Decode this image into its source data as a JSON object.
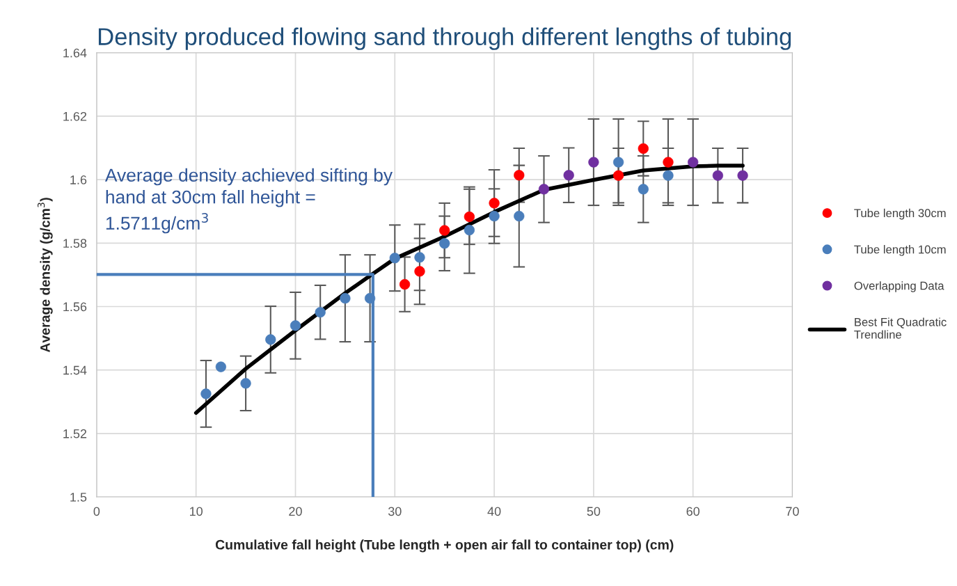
{
  "chart_data": {
    "type": "scatter",
    "title": "Density produced flowing sand through different lengths of tubing",
    "xlabel": "Cumulative fall height (Tube length + open air fall to container top) (cm)",
    "ylabel": "Average density (g/cm$^{3}$)",
    "xlim": [
      0,
      70
    ],
    "xticks": [
      0,
      10,
      20,
      30,
      40,
      50,
      60,
      70
    ],
    "ylim": [
      1.5,
      1.64
    ],
    "yticks": [
      1.5,
      1.52,
      1.54,
      1.56,
      1.58,
      1.6,
      1.62,
      1.64
    ],
    "grid": true,
    "legend": "right",
    "marker": "circle",
    "annotations": [
      "Average density achieved sifting by hand at 30cm fall height = 1.5711g/cm$^{3}$"
    ],
    "series": [
      {
        "name": "Tube length 30cm",
        "color": "#ff0000",
        "x": [
          31,
          32.5,
          35,
          37.5,
          40,
          42.5,
          52.5,
          55,
          57.5
        ],
        "values": [
          1.567,
          1.5711,
          1.584,
          1.5883,
          1.5926,
          1.6014,
          1.6013,
          1.6098,
          1.6055
        ],
        "errors": [
          0.0086,
          0.0104,
          0.0086,
          0.0087,
          0.0105,
          0.0085,
          0.0086,
          0.0086,
          0.0136
        ]
      },
      {
        "name": "Tube length 10cm",
        "color": "#4a7ebb",
        "x": [
          11,
          12.5,
          15,
          17.5,
          20,
          22.5,
          25,
          27.5,
          30,
          32.5,
          35,
          37.5,
          40,
          42.5,
          52.5,
          55,
          57.5
        ],
        "values": [
          1.5325,
          1.541,
          1.5358,
          1.5496,
          1.554,
          1.5582,
          1.5626,
          1.5626,
          1.5753,
          1.5755,
          1.5799,
          1.5841,
          1.5885,
          1.5885,
          1.6055,
          1.597,
          1.6013
        ],
        "errors": [
          0.0105,
          null,
          0.0086,
          0.0105,
          0.0105,
          0.0085,
          0.0137,
          0.0137,
          0.0104,
          0.0104,
          0.0086,
          0.0136,
          0.0086,
          0.016,
          0.0136,
          0.0105,
          0.0086
        ]
      },
      {
        "name": "Overlapping Data",
        "color": "#7030a0",
        "x": [
          45,
          47.5,
          50,
          60,
          62.5,
          65
        ],
        "values": [
          1.597,
          1.6014,
          1.6055,
          1.6055,
          1.6013,
          1.6013
        ],
        "errors": [
          0.0105,
          0.0086,
          0.0136,
          0.0136,
          0.0086,
          0.0086
        ]
      },
      {
        "name": "Best Fit Quadratic Trendline",
        "type": "line",
        "color": "#000000",
        "marker": "none",
        "x": [
          10,
          15,
          20,
          25,
          27.5,
          30,
          35,
          40,
          45,
          50,
          55,
          60,
          62.5,
          65
        ],
        "values": [
          1.5265,
          1.5404,
          1.5525,
          1.5642,
          1.5697,
          1.5751,
          1.5821,
          1.5898,
          1.5968,
          1.5999,
          1.6029,
          1.6042,
          1.6044,
          1.6044
        ]
      },
      {
        "type": "line",
        "color": "#4a7ebb",
        "marker": "none",
        "x": [
          0,
          27.8,
          27.8
        ],
        "values": [
          1.5701,
          1.5701,
          1.5
        ]
      }
    ]
  }
}
